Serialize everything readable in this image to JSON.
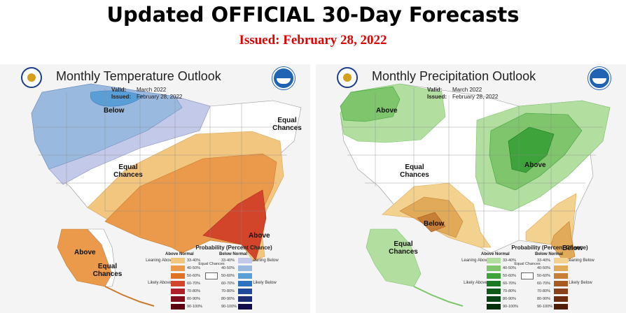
{
  "header": {
    "title": "Updated OFFICIAL 30-Day Forecasts",
    "issued": "Issued: February 28, 2022"
  },
  "colors": {
    "title": "#000000",
    "issued": "#e00000",
    "above_normal_temp": [
      "#f2c67e",
      "#ea9a4a",
      "#e07226",
      "#d2452a",
      "#b0202a",
      "#800d1c",
      "#5c0010"
    ],
    "below_normal_temp": [
      "#c3c9e8",
      "#9ab9de",
      "#5a9ed6",
      "#2c72bd",
      "#1f4a99",
      "#1a2c73",
      "#120c4a"
    ],
    "above_normal_precip": [
      "#b2dea0",
      "#7ec56b",
      "#3ea33a",
      "#1a7a24",
      "#0e5a19",
      "#0a4413",
      "#06300c"
    ],
    "below_normal_precip": [
      "#f2d28e",
      "#e0aa58",
      "#c77e36",
      "#a85a24",
      "#8a4018",
      "#6e2c0f",
      "#521c08"
    ]
  },
  "temperature": {
    "title": "Monthly Temperature Outlook",
    "valid_label": "Valid:",
    "valid_value": "March 2022",
    "issued_label": "Issued:",
    "issued_value": "February 28, 2022",
    "labels": {
      "below": "Below",
      "equal_ne": "Equal Chances",
      "equal_center": "Equal Chances",
      "above": "Above",
      "alaska_above": "Above",
      "alaska_equal": "Equal Chances"
    },
    "legend": {
      "title": "Probability (Percent Chance)",
      "left_head": "Above Normal",
      "right_head": "Below Normal",
      "ranges": [
        "33-40%",
        "40-50%",
        "50-60%",
        "60-70%",
        "70-80%",
        "80-90%",
        "90-100%"
      ],
      "left_side_top": "Leaning Above",
      "left_side_bottom": "Likely Above",
      "right_side_top": "Leaning Below",
      "right_side_bottom": "Likely Below",
      "equal": "Equal Chances"
    }
  },
  "precipitation": {
    "title": "Monthly Precipitation Outlook",
    "valid_label": "Valid:",
    "valid_value": "March 2022",
    "issued_label": "Issued:",
    "issued_value": "February 28, 2022",
    "labels": {
      "above_nw": "Above",
      "equal_west": "Equal Chances",
      "above_center": "Above",
      "below_south": "Below",
      "below_fl": "Below",
      "alaska_equal": "Equal Chances"
    },
    "legend": {
      "title": "Probability (Percent Chance)",
      "left_head": "Above Normal",
      "right_head": "Below Normal",
      "ranges": [
        "33-40%",
        "40-50%",
        "50-60%",
        "60-70%",
        "70-80%",
        "80-90%",
        "90-100%"
      ],
      "left_side_top": "Leaning Above",
      "left_side_bottom": "Likely Above",
      "right_side_top": "Leaning Below",
      "right_side_bottom": "Likely Below",
      "equal": "Equal Chances"
    }
  }
}
